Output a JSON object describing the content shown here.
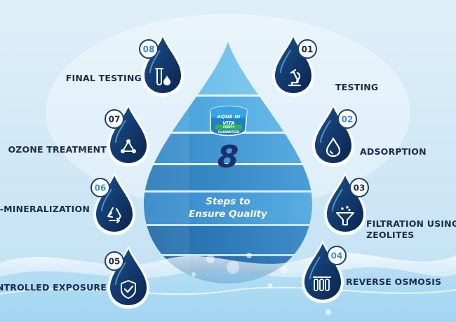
{
  "brand": {
    "logo_text": "AQUA DI VITA",
    "logo_tagline": "PURITY GUARANTEED"
  },
  "center": {
    "number": "8",
    "line1": "Steps to",
    "line2": "Ensure Quality"
  },
  "colors": {
    "navy": "#1d2b4a",
    "drop_dark": "#0e2d5e",
    "drop_blue": "#3f8fcf",
    "accent_light": "#7cc8ef"
  },
  "steps": [
    {
      "num": "01",
      "label": "TESTING",
      "icon": "microscope-icon"
    },
    {
      "num": "02",
      "label": "ADSORPTION",
      "icon": "water-drop-icon"
    },
    {
      "num": "03",
      "label_line1": "FILTRATION USING",
      "label_line2": "ZEOLITES",
      "icon": "funnel-filter-icon"
    },
    {
      "num": "04",
      "label": "REVERSE OSMOSIS",
      "icon": "ro-filter-icon"
    },
    {
      "num": "05",
      "label": "CONTROLLED EXPOSURE",
      "icon": "shield-check-icon"
    },
    {
      "num": "06",
      "label": "RE-MINERALIZATION",
      "icon": "recycle-icon"
    },
    {
      "num": "07",
      "label": "OZONE TREATMENT",
      "icon": "molecule-icon"
    },
    {
      "num": "08",
      "label": "FINAL TESTING",
      "icon": "test-tube-icon"
    }
  ]
}
